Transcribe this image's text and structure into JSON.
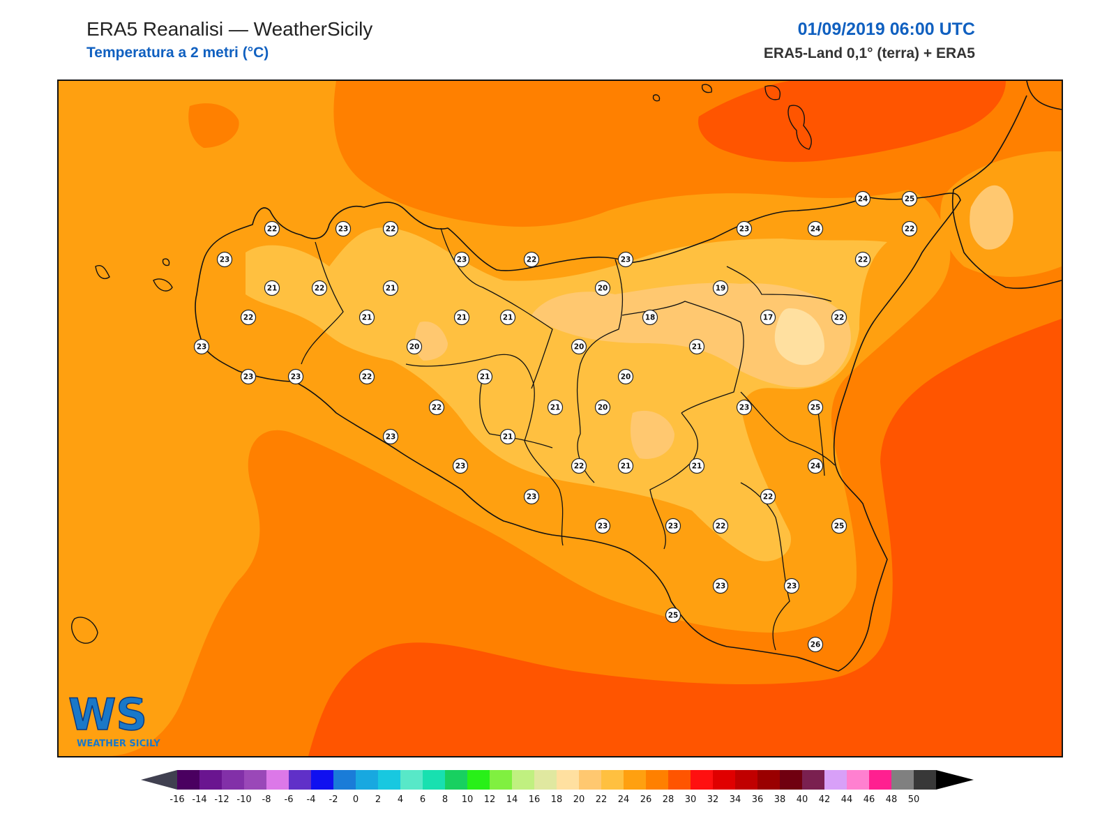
{
  "header": {
    "title": "ERA5 Reanalisi — WeatherSicily",
    "subtitle": "Temperatura a 2 metri (°C)",
    "valid_time": "01/09/2019 06:00 UTC",
    "source": "ERA5-Land 0,1° (terra) + ERA5"
  },
  "logo": {
    "letters": "WS",
    "name": "WEATHER SICILY"
  },
  "colorbar": {
    "ticks": [
      "-16",
      "-14",
      "-12",
      "-10",
      "-8",
      "-6",
      "-4",
      "-2",
      "0",
      "2",
      "4",
      "6",
      "8",
      "10",
      "12",
      "14",
      "16",
      "18",
      "20",
      "22",
      "24",
      "26",
      "28",
      "30",
      "32",
      "34",
      "36",
      "38",
      "40",
      "42",
      "44",
      "46",
      "48",
      "50"
    ],
    "colors": [
      "#4a0060",
      "#6a1590",
      "#8230a8",
      "#9a48b8",
      "#dc78e8",
      "#6030c8",
      "#1010f0",
      "#1a7cd8",
      "#18a8e0",
      "#18c8e0",
      "#58e8c8",
      "#18e0b0",
      "#18d060",
      "#28f018",
      "#80f040",
      "#c0f080",
      "#e0e8a0",
      "#ffe0a0",
      "#ffc870",
      "#ffc040",
      "#ffa010",
      "#ff8000",
      "#ff5500",
      "#ff1010",
      "#e00000",
      "#c00000",
      "#9a0000",
      "#700010",
      "#7a2050",
      "#d8a0f8",
      "#ff80d0",
      "#ff2090",
      "#808080",
      "#383838"
    ],
    "under_color": "#404050",
    "over_color": "#000000"
  },
  "map": {
    "colors": {
      "sea_24_26": "#ff8000",
      "warm_26_28": "#ff5500",
      "land_22_24": "#ffa010",
      "inland_20_22": "#ffc040",
      "cool_18_20": "#ffc870",
      "cool_16_18": "#ffe0a0",
      "coast": "#111111"
    },
    "stations": [
      "23",
      "22",
      "23",
      "22",
      "23",
      "22",
      "23",
      "23",
      "24",
      "24",
      "25",
      "21",
      "22",
      "21",
      "20",
      "19",
      "22",
      "22",
      "21",
      "21",
      "21",
      "18",
      "17",
      "22",
      "23",
      "20",
      "20",
      "21",
      "23",
      "23",
      "22",
      "22",
      "21",
      "20",
      "20",
      "21",
      "23",
      "25",
      "22",
      "23",
      "21",
      "23",
      "22",
      "21",
      "21",
      "24",
      "23",
      "22",
      "23",
      "23",
      "22",
      "25",
      "23",
      "23",
      "25",
      "26"
    ]
  }
}
